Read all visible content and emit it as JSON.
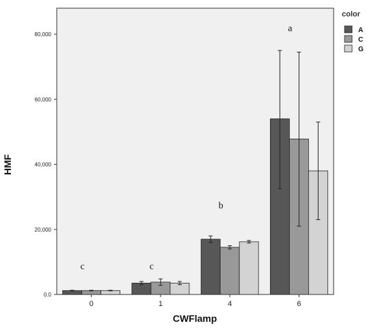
{
  "chart_data": {
    "type": "bar",
    "xlabel": "CWFlamp",
    "ylabel": "HMF",
    "categories": [
      "0",
      "1",
      "4",
      "6"
    ],
    "ylim": [
      0,
      88000
    ],
    "yticks": [
      0,
      20000,
      40000,
      60000,
      80000
    ],
    "ytick_labels": [
      "0.0",
      "20,000",
      "40,000",
      "60,000",
      "80,000"
    ],
    "grid": false,
    "legend": {
      "title": "color",
      "placement": "right"
    },
    "series": [
      {
        "name": "A",
        "color": "#575757",
        "values": [
          1200,
          3500,
          17000,
          54000
        ],
        "err_low": [
          1100,
          3000,
          16000,
          32500
        ],
        "err_high": [
          1300,
          4000,
          18000,
          75000
        ]
      },
      {
        "name": "C",
        "color": "#999999",
        "values": [
          1200,
          3800,
          14500,
          47800
        ],
        "err_low": [
          1100,
          2800,
          14000,
          21000
        ],
        "err_high": [
          1300,
          4800,
          15000,
          74500
        ]
      },
      {
        "name": "G",
        "color": "#d3d3d3",
        "values": [
          1200,
          3500,
          16200,
          38000
        ],
        "err_low": [
          1100,
          3000,
          15800,
          23000
        ],
        "err_high": [
          1300,
          4000,
          16600,
          53000
        ]
      }
    ],
    "annotations": [
      {
        "category": "0",
        "text": "c",
        "y": 7800
      },
      {
        "category": "1",
        "text": "c",
        "y": 7800
      },
      {
        "category": "4",
        "text": "b",
        "y": 26500
      },
      {
        "category": "6",
        "text": "a",
        "y": 81000
      }
    ]
  }
}
